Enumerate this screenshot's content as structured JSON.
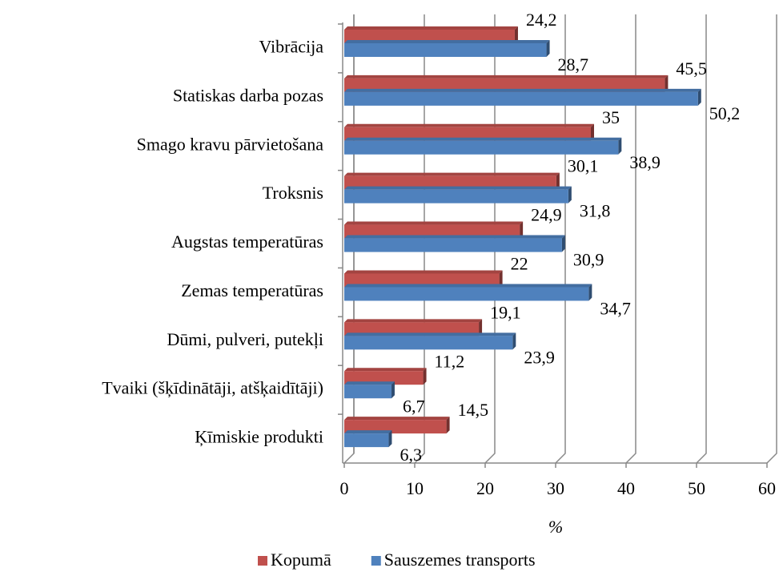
{
  "chart_data": {
    "type": "bar",
    "orientation": "horizontal",
    "categories": [
      "Vibrācija",
      "Statiskas darba pozas",
      "Smago kravu pārvietošana",
      "Troksnis",
      "Augstas temperatūras",
      "Zemas temperatūras",
      "Dūmi, pulveri, putekļi",
      "Tvaiki (šķīdinātāji, atšķaidītāji)",
      "Ķīmiskie produkti"
    ],
    "series": [
      {
        "name": "Kopumā",
        "color": "#c0504d",
        "values": [
          24.2,
          45.5,
          35,
          30.1,
          24.9,
          22,
          19.1,
          11.2,
          14.5
        ],
        "value_labels": [
          "24,2",
          "45,5",
          "35",
          "30,1",
          "24,9",
          "22",
          "19,1",
          "11,2",
          "14,5"
        ]
      },
      {
        "name": "Sauszemes transports",
        "color": "#4f81bd",
        "values": [
          28.7,
          50.2,
          38.9,
          31.8,
          30.9,
          34.7,
          23.9,
          6.7,
          6.3
        ],
        "value_labels": [
          "28,7",
          "50,2",
          "38,9",
          "31,8",
          "30,9",
          "34,7",
          "23,9",
          "6,7",
          "6,3"
        ]
      }
    ],
    "xlabel": "%",
    "xlim": [
      0,
      60
    ],
    "xticks": [
      0,
      10,
      20,
      30,
      40,
      50,
      60
    ],
    "grid": true,
    "legend": "bottom"
  }
}
